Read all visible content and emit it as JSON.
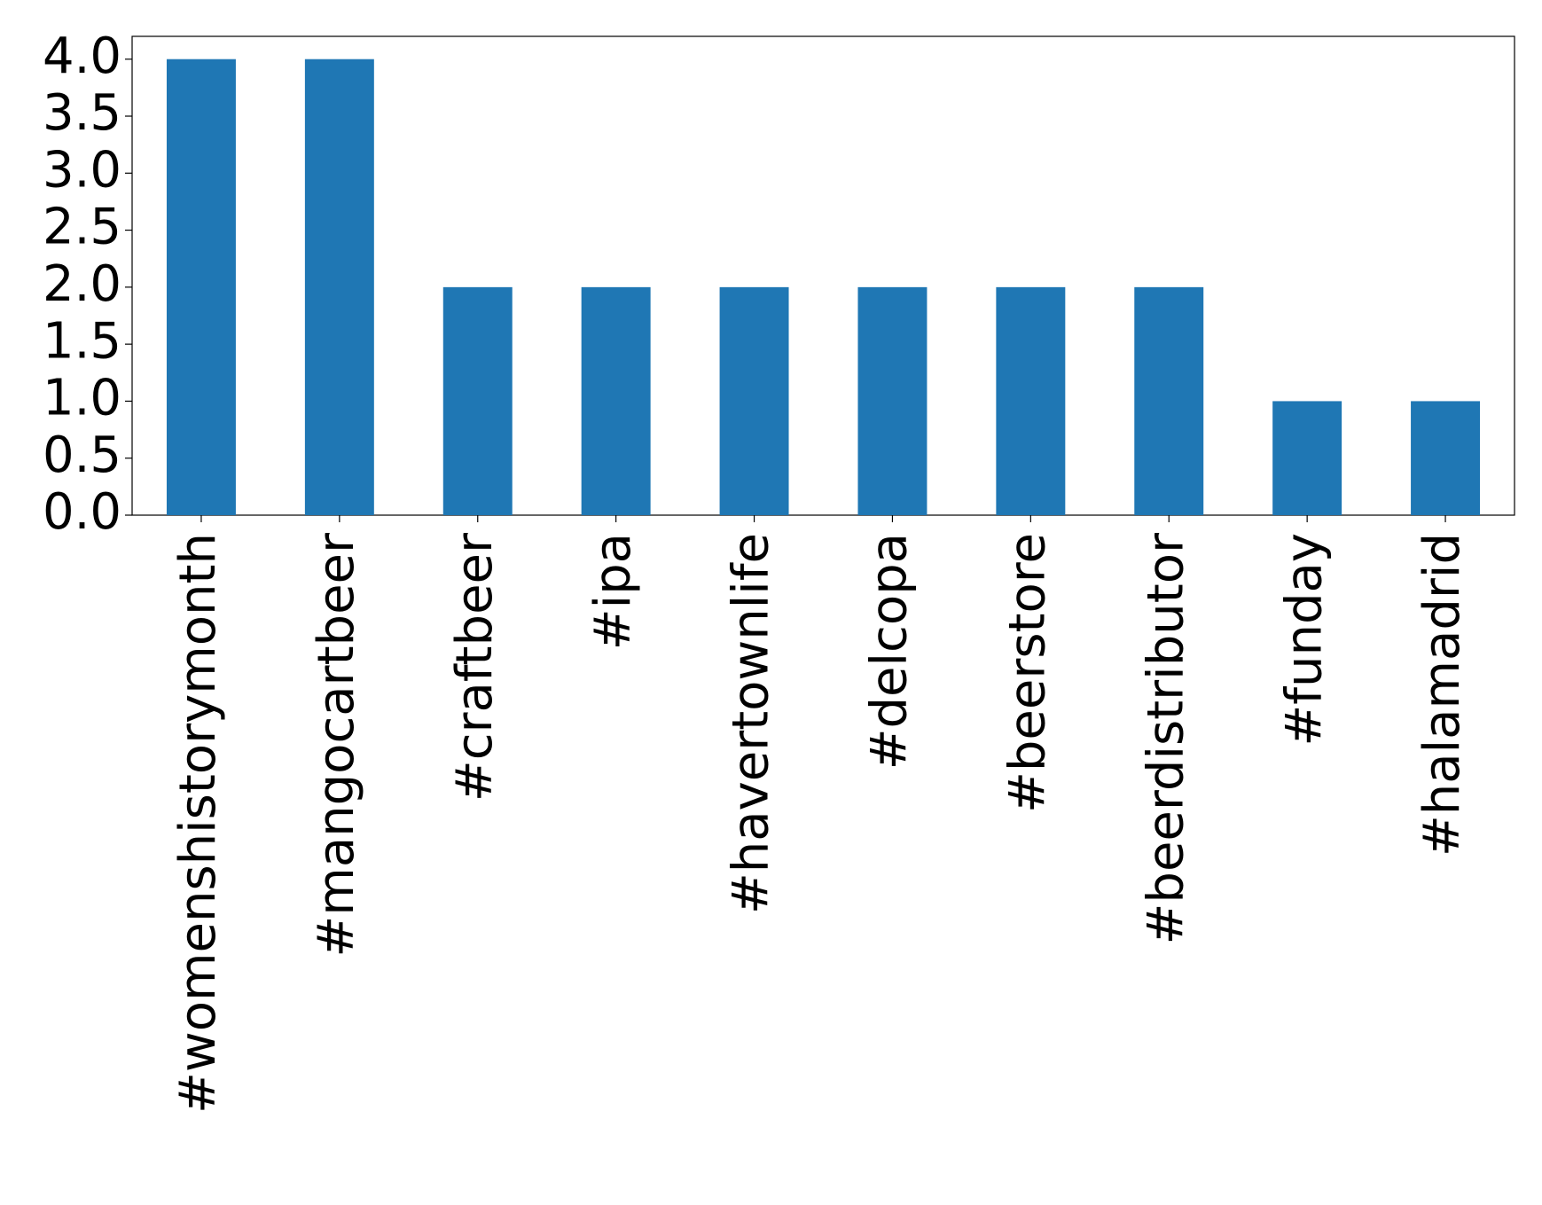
{
  "chart_data": {
    "type": "bar",
    "categories": [
      "#womenshistorymonth",
      "#mangocartbeer",
      "#craftbeer",
      "#ipa",
      "#havertownlife",
      "#delcopa",
      "#beerstore",
      "#beerdistributor",
      "#funday",
      "#halamadrid"
    ],
    "values": [
      4,
      4,
      2,
      2,
      2,
      2,
      2,
      2,
      1,
      1
    ],
    "color": "#1f77b4",
    "ylim": [
      0,
      4.2
    ],
    "yticks": [
      {
        "value": 0,
        "label": "0.0"
      },
      0.5,
      {
        "value": 1,
        "label": "1.0"
      },
      1.5,
      {
        "value": 2,
        "label": "2.0"
      },
      2.5,
      {
        "value": 3,
        "label": "3.0"
      },
      3.5,
      {
        "value": 4,
        "label": "4.0"
      }
    ],
    "grid": false
  }
}
